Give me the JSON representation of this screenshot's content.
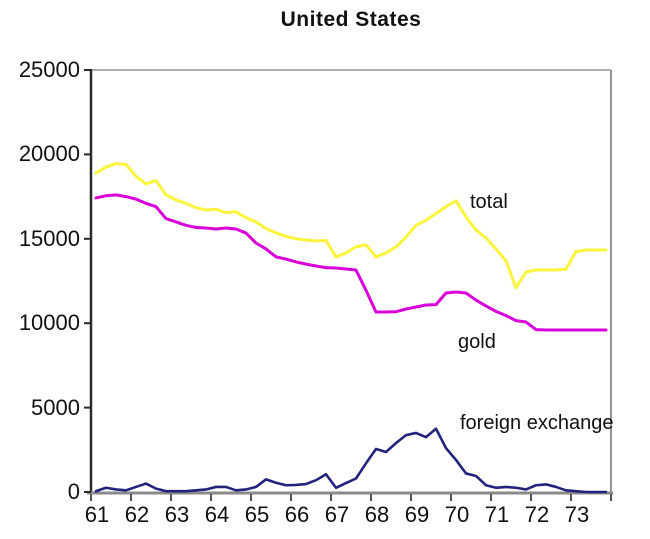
{
  "title": "United States",
  "colors": {
    "total": "#FAF43C",
    "gold": "#D800D8",
    "foreign_exchange": "#23237D",
    "axis_left": "#2a2a2a",
    "axis_bottom": "#8a8a8a",
    "border": "#949494",
    "text": "#111111"
  },
  "annotations": {
    "total": "total",
    "gold": "gold",
    "foreign_exchange": "foreign exchange"
  },
  "chart_data": {
    "type": "line",
    "title": "United States",
    "xlabel": "",
    "ylabel": "",
    "grid": false,
    "legend_position": "inline-annotations",
    "ylim": [
      0,
      25000
    ],
    "y_ticks": [
      0,
      5000,
      10000,
      15000,
      20000,
      25000
    ],
    "x_tick_labels": [
      "61",
      "62",
      "63",
      "64",
      "65",
      "66",
      "67",
      "68",
      "69",
      "70",
      "71",
      "72",
      "73"
    ],
    "points_per_year": 4,
    "series": [
      {
        "name": "total",
        "color_key": "total",
        "values": [
          18900,
          19250,
          19450,
          19400,
          18700,
          18250,
          18450,
          17600,
          17300,
          17100,
          16850,
          16700,
          16750,
          16550,
          16600,
          16250,
          16000,
          15600,
          15350,
          15150,
          15000,
          14930,
          14870,
          14900,
          13930,
          14160,
          14520,
          14640,
          13930,
          14160,
          14520,
          15100,
          15800,
          16100,
          16500,
          16900,
          17250,
          16300,
          15520,
          15050,
          14400,
          13700,
          12100,
          13030,
          13150,
          13150,
          13150,
          13200,
          14250,
          14340,
          14340,
          14340
        ]
      },
      {
        "name": "gold",
        "color_key": "gold",
        "values": [
          17420,
          17550,
          17600,
          17500,
          17350,
          17100,
          16900,
          16200,
          16000,
          15800,
          15670,
          15640,
          15580,
          15640,
          15580,
          15340,
          14750,
          14400,
          13930,
          13800,
          13630,
          13500,
          13390,
          13290,
          13270,
          13210,
          13150,
          11950,
          10660,
          10660,
          10680,
          10840,
          10960,
          11080,
          11100,
          11790,
          11850,
          11790,
          11370,
          11020,
          10700,
          10450,
          10150,
          10070,
          9620,
          9600,
          9600,
          9600,
          9600,
          9600,
          9600,
          9600
        ]
      },
      {
        "name": "foreign exchange",
        "color_key": "foreign_exchange",
        "values": [
          50,
          250,
          150,
          100,
          300,
          500,
          200,
          50,
          50,
          50,
          100,
          150,
          300,
          300,
          100,
          150,
          300,
          750,
          550,
          400,
          420,
          470,
          700,
          1050,
          250,
          530,
          800,
          1700,
          2550,
          2370,
          2900,
          3370,
          3500,
          3250,
          3750,
          2600,
          1900,
          1100,
          950,
          400,
          250,
          300,
          250,
          150,
          400,
          450,
          300,
          100,
          50,
          0,
          0,
          0
        ]
      }
    ]
  }
}
